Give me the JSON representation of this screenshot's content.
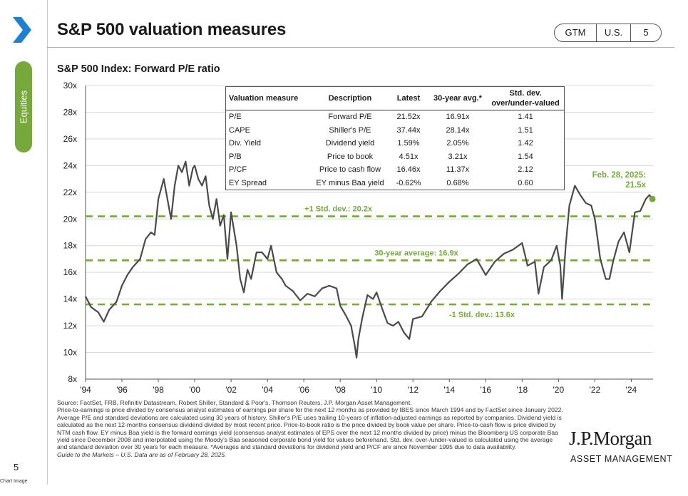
{
  "header": {
    "title": "S&P 500 valuation measures",
    "nav": [
      "GTM",
      "U.S.",
      "5"
    ]
  },
  "section_tab": "Equities",
  "chart_subtitle": "S&P 500 Index: Forward P/E ratio",
  "colors": {
    "line": "#4a4a4a",
    "accent_green": "#76a83b",
    "chevron_blue": "#1f7fd1"
  },
  "icons": {
    "chevron": "chevron-right-icon"
  },
  "chart_data": {
    "type": "line",
    "title": "S&P 500 Index: Forward P/E ratio",
    "x_ticks": [
      "'94",
      "'96",
      "'98",
      "'00",
      "'02",
      "'04",
      "'06",
      "'08",
      "'10",
      "'12",
      "'14",
      "'16",
      "'18",
      "'20",
      "'22",
      "'24"
    ],
    "y_ticks": [
      "8x",
      "10x",
      "12x",
      "14x",
      "16x",
      "18x",
      "20x",
      "22x",
      "24x",
      "26x",
      "28x",
      "30x"
    ],
    "xlim": [
      1994,
      2025.2
    ],
    "ylim": [
      8,
      30
    ],
    "grid": "horizontal",
    "series": [
      {
        "x": [
          1994.0,
          1994.3,
          1994.7,
          1995.0,
          1995.3,
          1995.7,
          1996.0,
          1996.3,
          1996.6,
          1997.0,
          1997.3,
          1997.6,
          1997.8,
          1998.0,
          1998.3,
          1998.5,
          1998.7,
          1998.9,
          1999.1,
          1999.3,
          1999.5,
          1999.7,
          1999.9,
          2000.0,
          2000.2,
          2000.4,
          2000.6,
          2000.8,
          2001.0,
          2001.2,
          2001.4,
          2001.6,
          2001.8,
          2002.0,
          2002.3,
          2002.5,
          2002.7,
          2002.9,
          2003.1,
          2003.4,
          2003.7,
          2004.0,
          2004.2,
          2004.5,
          2004.8,
          2005.0,
          2005.4,
          2005.8,
          2006.2,
          2006.6,
          2007.0,
          2007.4,
          2007.8,
          2008.0,
          2008.3,
          2008.6,
          2008.8,
          2008.9,
          2009.0,
          2009.2,
          2009.5,
          2009.8,
          2010.0,
          2010.3,
          2010.6,
          2010.9,
          2011.2,
          2011.5,
          2011.8,
          2012.0,
          2012.5,
          2013.0,
          2013.5,
          2014.0,
          2014.5,
          2015.0,
          2015.5,
          2016.0,
          2016.5,
          2017.0,
          2017.5,
          2018.0,
          2018.3,
          2018.7,
          2018.9,
          2019.2,
          2019.6,
          2019.9,
          2020.1,
          2020.2,
          2020.4,
          2020.6,
          2020.9,
          2021.2,
          2021.5,
          2021.8,
          2022.0,
          2022.3,
          2022.6,
          2022.8,
          2023.0,
          2023.3,
          2023.6,
          2023.9,
          2024.2,
          2024.5,
          2024.8,
          2025.0,
          2025.16
        ],
        "y": [
          14.2,
          13.4,
          13.0,
          12.3,
          13.2,
          13.8,
          15.0,
          15.8,
          16.4,
          17.0,
          18.5,
          19.0,
          18.8,
          21.5,
          23.0,
          21.5,
          20.0,
          22.5,
          24.0,
          23.5,
          24.3,
          22.5,
          23.8,
          24.0,
          23.0,
          22.5,
          23.2,
          21.0,
          20.0,
          21.5,
          19.5,
          20.3,
          17.0,
          20.5,
          18.0,
          15.5,
          14.5,
          16.2,
          15.5,
          17.5,
          17.5,
          17.0,
          18.0,
          16.0,
          15.5,
          15.0,
          14.6,
          13.9,
          14.4,
          14.2,
          14.8,
          15.0,
          14.8,
          13.5,
          12.8,
          12.0,
          10.5,
          9.6,
          11.0,
          12.5,
          14.3,
          14.0,
          14.5,
          13.3,
          12.2,
          12.0,
          12.3,
          11.5,
          11.0,
          12.5,
          12.7,
          13.8,
          14.6,
          15.3,
          15.9,
          16.6,
          17.0,
          15.8,
          16.8,
          17.4,
          17.7,
          18.2,
          16.5,
          16.8,
          14.4,
          16.4,
          16.9,
          18.0,
          16.5,
          14.0,
          18.0,
          21.0,
          22.5,
          21.8,
          21.2,
          21.0,
          20.0,
          17.0,
          15.5,
          15.5,
          16.8,
          18.3,
          19.0,
          17.5,
          20.5,
          20.6,
          21.5,
          21.8,
          21.5
        ]
      }
    ],
    "reference_lines": [
      {
        "label": "+1 Std. dev.: 20.2x",
        "value": 20.2
      },
      {
        "label": "30-year average: 16.9x",
        "value": 16.9
      },
      {
        "label": "-1 Std. dev.: 13.6x",
        "value": 13.6
      }
    ],
    "end_annotation": {
      "line1": "Feb. 28, 2025:",
      "line2": "21.5x",
      "x": 2025.16,
      "y": 21.5
    }
  },
  "table": {
    "headers": [
      "Valuation measure",
      "Description",
      "Latest",
      "30-year avg.*",
      "Std. dev. over/under-valued"
    ],
    "rows": [
      [
        "P/E",
        "Forward P/E",
        "21.52x",
        "16.91x",
        "1.41"
      ],
      [
        "CAPE",
        "Shiller's P/E",
        "37.44x",
        "28.14x",
        "1.51"
      ],
      [
        "Div. Yield",
        "Dividend yield",
        "1.59%",
        "2.05%",
        "1.42"
      ],
      [
        "P/B",
        "Price to book",
        "4.51x",
        "3.21x",
        "1.54"
      ],
      [
        "P/CF",
        "Price to cash flow",
        "16.46x",
        "11.37x",
        "2.12"
      ],
      [
        "EY Spread",
        "EY minus Baa yield",
        "-0.62%",
        "0.68%",
        "0.60"
      ]
    ]
  },
  "source_lines": [
    "Source: FactSet, FRB, Refinitiv Datastream, Robert Shiller, Standard & Poor's, Thomson Reuters, J.P. Morgan Asset Management.",
    "Price-to-earnings is price divided by consensus analyst estimates of earnings per share for the next 12 months as provided by IBES since March 1994 and by FactSet since January 2022. Average P/E and standard deviations are calculated using 30 years of history. Shiller's P/E uses trailing 10-years of inflation-adjusted earnings as reported by companies. Dividend yield is calculated as the next 12-months consensus dividend divided by most recent price. Price-to-book ratio is the price divided by book value per share. Price-to-cash flow is price divided by NTM cash flow. EY minus Baa yield is the forward earnings yield (consensus analyst estimates of EPS over the next 12 months divided by price) minus the Bloomberg US corporate Baa yield since December 2008 and interpolated using the Moody's Baa seasoned corporate bond yield for values beforehand. Std. dev. over-/under-valued is calculated using the average and standard deviation over 30 years for each measure. *Averages and standard deviations for dividend yield and P/CF are since November 1995 due to data availability.",
    "Guide to the Markets – U.S. Data are as of February 28, 2025."
  ],
  "logo": {
    "name": "J.P.Morgan",
    "sub": "ASSET MANAGEMENT"
  },
  "page_number": "5",
  "footer_label": "Chart Image"
}
